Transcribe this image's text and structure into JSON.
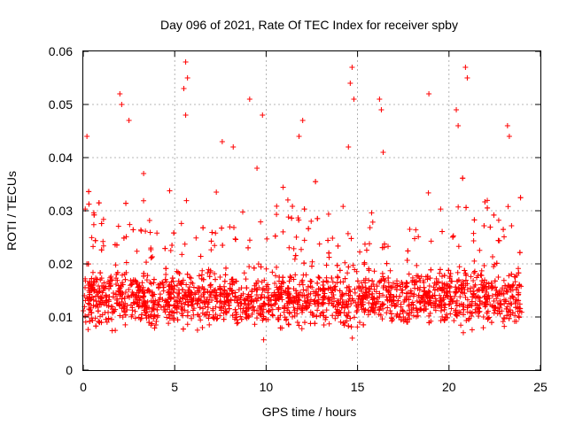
{
  "chart_data": {
    "type": "scatter",
    "title": "Day 096 of 2021, Rate Of TEC Index for receiver spby",
    "xlabel": "GPS time / hours",
    "ylabel": "ROTI / TECUs",
    "xlim": [
      0,
      25
    ],
    "ylim": [
      0,
      0.06
    ],
    "x_ticks": [
      0,
      5,
      10,
      15,
      20,
      25
    ],
    "x_tick_labels": [
      "0",
      "5",
      "10",
      "15",
      "20",
      "25"
    ],
    "y_ticks": [
      0,
      0.01,
      0.02,
      0.03,
      0.04,
      0.05,
      0.06
    ],
    "y_tick_labels": [
      "0",
      "0.01",
      "0.02",
      "0.03",
      "0.04",
      "0.05",
      "0.06"
    ],
    "grid": true,
    "marker": "plus",
    "color": "#ff0000",
    "series": [
      {
        "name": "ROTI",
        "description": "Dense per-satellite ROTI samples; bulk between 0.005 and 0.025 TECU/min over 0-24 h, with spikes reaching ~0.058",
        "x_range": [
          0,
          24
        ],
        "typical_range": [
          0.005,
          0.025
        ],
        "notable_points": [
          {
            "x": 0.2,
            "y": 0.044
          },
          {
            "x": 2.0,
            "y": 0.052
          },
          {
            "x": 2.1,
            "y": 0.05
          },
          {
            "x": 2.5,
            "y": 0.047
          },
          {
            "x": 5.6,
            "y": 0.058
          },
          {
            "x": 5.7,
            "y": 0.055
          },
          {
            "x": 5.5,
            "y": 0.053
          },
          {
            "x": 5.6,
            "y": 0.048
          },
          {
            "x": 9.1,
            "y": 0.051
          },
          {
            "x": 9.8,
            "y": 0.048
          },
          {
            "x": 12.0,
            "y": 0.047
          },
          {
            "x": 14.7,
            "y": 0.057
          },
          {
            "x": 14.6,
            "y": 0.054
          },
          {
            "x": 14.8,
            "y": 0.051
          },
          {
            "x": 16.2,
            "y": 0.051
          },
          {
            "x": 16.3,
            "y": 0.049
          },
          {
            "x": 18.9,
            "y": 0.052
          },
          {
            "x": 20.9,
            "y": 0.057
          },
          {
            "x": 21.0,
            "y": 0.055
          },
          {
            "x": 20.4,
            "y": 0.049
          },
          {
            "x": 20.5,
            "y": 0.046
          },
          {
            "x": 23.2,
            "y": 0.046
          },
          {
            "x": 23.3,
            "y": 0.044
          },
          {
            "x": 14.5,
            "y": 0.042
          },
          {
            "x": 16.4,
            "y": 0.041
          },
          {
            "x": 9.5,
            "y": 0.038
          },
          {
            "x": 3.3,
            "y": 0.037
          },
          {
            "x": 7.6,
            "y": 0.043
          },
          {
            "x": 8.2,
            "y": 0.042
          },
          {
            "x": 11.8,
            "y": 0.044
          }
        ]
      }
    ]
  }
}
